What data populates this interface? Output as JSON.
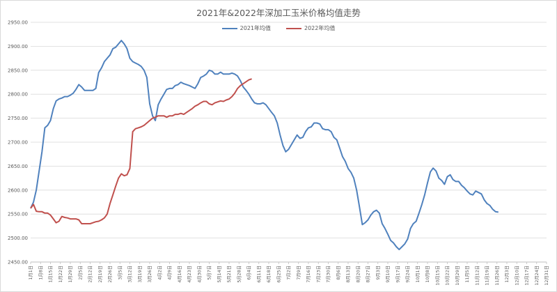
{
  "chart_data": {
    "type": "line",
    "title": "2021年&2022年深加工玉米价格均值走势",
    "xlabel": "",
    "ylabel": "",
    "ylim": [
      2450,
      2950
    ],
    "ytick_labels": [
      "2450.00",
      "2500.00",
      "2550.00",
      "2600.00",
      "2650.00",
      "2700.00",
      "2750.00",
      "2800.00",
      "2850.00",
      "2900.00",
      "2950.00"
    ],
    "x_tick_labels": [
      "1月1日",
      "1月8日",
      "1月15日",
      "1月22日",
      "1月29日",
      "2月5日",
      "2月12日",
      "2月19日",
      "2月26日",
      "3月5日",
      "3月12日",
      "3月19日",
      "3月26日",
      "4月2日",
      "4月9日",
      "4月16日",
      "4月23日",
      "4月30日",
      "5月7日",
      "5月14日",
      "5月21日",
      "5月28日",
      "6月4日",
      "6月11日",
      "6月18日",
      "6月25日",
      "7月2日",
      "7月9日",
      "7月16日",
      "7月23日",
      "7月30日",
      "8月6日",
      "8月13日",
      "8月20日",
      "8月27日",
      "9月3日",
      "9月10日",
      "9月17日",
      "9月24日",
      "10月1日",
      "10月8日",
      "10月15日",
      "10月22日",
      "10月29日",
      "11月5日",
      "11月12日",
      "11月19日",
      "11月26日",
      "12月3日",
      "12月10日",
      "12月17日",
      "12月24日",
      "12月31日"
    ],
    "grid": "horizontal",
    "legend_position": "top",
    "series": [
      {
        "name": "2021年均值",
        "color": "#4f81bd",
        "points": [
          [
            0,
            2562
          ],
          [
            2,
            2575
          ],
          [
            4,
            2600
          ],
          [
            6,
            2640
          ],
          [
            8,
            2680
          ],
          [
            10,
            2730
          ],
          [
            12,
            2735
          ],
          [
            14,
            2745
          ],
          [
            16,
            2770
          ],
          [
            18,
            2786
          ],
          [
            20,
            2790
          ],
          [
            22,
            2792
          ],
          [
            24,
            2795
          ],
          [
            26,
            2795
          ],
          [
            28,
            2798
          ],
          [
            30,
            2802
          ],
          [
            32,
            2810
          ],
          [
            34,
            2820
          ],
          [
            36,
            2815
          ],
          [
            38,
            2808
          ],
          [
            40,
            2808
          ],
          [
            42,
            2808
          ],
          [
            44,
            2808
          ],
          [
            46,
            2812
          ],
          [
            48,
            2845
          ],
          [
            50,
            2855
          ],
          [
            52,
            2868
          ],
          [
            54,
            2875
          ],
          [
            56,
            2882
          ],
          [
            58,
            2895
          ],
          [
            60,
            2898
          ],
          [
            62,
            2905
          ],
          [
            64,
            2912
          ],
          [
            66,
            2905
          ],
          [
            68,
            2895
          ],
          [
            70,
            2875
          ],
          [
            72,
            2868
          ],
          [
            74,
            2865
          ],
          [
            76,
            2862
          ],
          [
            78,
            2858
          ],
          [
            80,
            2850
          ],
          [
            82,
            2835
          ],
          [
            84,
            2780
          ],
          [
            86,
            2755
          ],
          [
            88,
            2745
          ],
          [
            90,
            2778
          ],
          [
            92,
            2790
          ],
          [
            94,
            2800
          ],
          [
            96,
            2810
          ],
          [
            98,
            2812
          ],
          [
            100,
            2812
          ],
          [
            102,
            2818
          ],
          [
            104,
            2820
          ],
          [
            106,
            2825
          ],
          [
            108,
            2822
          ],
          [
            110,
            2820
          ],
          [
            112,
            2818
          ],
          [
            114,
            2815
          ],
          [
            116,
            2812
          ],
          [
            118,
            2822
          ],
          [
            120,
            2835
          ],
          [
            122,
            2838
          ],
          [
            124,
            2842
          ],
          [
            126,
            2850
          ],
          [
            128,
            2848
          ],
          [
            130,
            2842
          ],
          [
            132,
            2842
          ],
          [
            134,
            2846
          ],
          [
            136,
            2842
          ],
          [
            138,
            2842
          ],
          [
            140,
            2842
          ],
          [
            142,
            2844
          ],
          [
            144,
            2842
          ],
          [
            146,
            2838
          ],
          [
            148,
            2828
          ],
          [
            150,
            2815
          ],
          [
            152,
            2808
          ],
          [
            154,
            2800
          ],
          [
            156,
            2790
          ],
          [
            158,
            2782
          ],
          [
            160,
            2780
          ],
          [
            162,
            2780
          ],
          [
            164,
            2782
          ],
          [
            166,
            2778
          ],
          [
            168,
            2770
          ],
          [
            170,
            2762
          ],
          [
            172,
            2755
          ],
          [
            174,
            2740
          ],
          [
            176,
            2715
          ],
          [
            178,
            2693
          ],
          [
            180,
            2680
          ],
          [
            182,
            2685
          ],
          [
            184,
            2695
          ],
          [
            186,
            2705
          ],
          [
            188,
            2715
          ],
          [
            190,
            2708
          ],
          [
            192,
            2710
          ],
          [
            194,
            2722
          ],
          [
            196,
            2730
          ],
          [
            198,
            2732
          ],
          [
            200,
            2740
          ],
          [
            202,
            2740
          ],
          [
            204,
            2738
          ],
          [
            206,
            2728
          ],
          [
            208,
            2726
          ],
          [
            210,
            2726
          ],
          [
            212,
            2722
          ],
          [
            214,
            2710
          ],
          [
            216,
            2705
          ],
          [
            218,
            2688
          ],
          [
            220,
            2670
          ],
          [
            222,
            2660
          ],
          [
            224,
            2645
          ],
          [
            226,
            2637
          ],
          [
            228,
            2625
          ],
          [
            230,
            2600
          ],
          [
            232,
            2565
          ],
          [
            234,
            2528
          ],
          [
            236,
            2532
          ],
          [
            238,
            2538
          ],
          [
            240,
            2548
          ],
          [
            242,
            2555
          ],
          [
            244,
            2558
          ],
          [
            246,
            2552
          ],
          [
            248,
            2530
          ],
          [
            250,
            2520
          ],
          [
            252,
            2508
          ],
          [
            254,
            2495
          ],
          [
            256,
            2490
          ],
          [
            258,
            2482
          ],
          [
            260,
            2476
          ],
          [
            262,
            2482
          ],
          [
            264,
            2488
          ],
          [
            266,
            2498
          ],
          [
            268,
            2520
          ],
          [
            270,
            2530
          ],
          [
            272,
            2535
          ],
          [
            274,
            2552
          ],
          [
            276,
            2570
          ],
          [
            278,
            2590
          ],
          [
            280,
            2615
          ],
          [
            282,
            2638
          ],
          [
            284,
            2646
          ],
          [
            286,
            2640
          ],
          [
            288,
            2625
          ],
          [
            290,
            2620
          ],
          [
            292,
            2612
          ],
          [
            294,
            2628
          ],
          [
            296,
            2632
          ],
          [
            298,
            2622
          ],
          [
            300,
            2618
          ],
          [
            302,
            2618
          ],
          [
            304,
            2610
          ],
          [
            306,
            2605
          ],
          [
            308,
            2598
          ],
          [
            310,
            2592
          ],
          [
            312,
            2590
          ],
          [
            314,
            2598
          ],
          [
            316,
            2595
          ],
          [
            318,
            2592
          ],
          [
            320,
            2580
          ],
          [
            322,
            2572
          ],
          [
            324,
            2568
          ],
          [
            326,
            2560
          ],
          [
            328,
            2555
          ],
          [
            330,
            2554
          ]
        ]
      },
      {
        "name": "2022年均值",
        "color": "#c0504d",
        "points": [
          [
            0,
            2562
          ],
          [
            2,
            2570
          ],
          [
            4,
            2556
          ],
          [
            6,
            2555
          ],
          [
            8,
            2555
          ],
          [
            10,
            2552
          ],
          [
            12,
            2552
          ],
          [
            14,
            2548
          ],
          [
            16,
            2540
          ],
          [
            18,
            2532
          ],
          [
            20,
            2535
          ],
          [
            22,
            2545
          ],
          [
            24,
            2543
          ],
          [
            26,
            2542
          ],
          [
            28,
            2540
          ],
          [
            30,
            2540
          ],
          [
            32,
            2540
          ],
          [
            34,
            2538
          ],
          [
            36,
            2530
          ],
          [
            38,
            2530
          ],
          [
            40,
            2530
          ],
          [
            42,
            2530
          ],
          [
            44,
            2532
          ],
          [
            46,
            2534
          ],
          [
            48,
            2535
          ],
          [
            50,
            2538
          ],
          [
            52,
            2542
          ],
          [
            54,
            2550
          ],
          [
            56,
            2572
          ],
          [
            58,
            2590
          ],
          [
            60,
            2608
          ],
          [
            62,
            2625
          ],
          [
            64,
            2634
          ],
          [
            66,
            2630
          ],
          [
            68,
            2632
          ],
          [
            70,
            2645
          ],
          [
            72,
            2722
          ],
          [
            74,
            2728
          ],
          [
            76,
            2730
          ],
          [
            78,
            2732
          ],
          [
            80,
            2735
          ],
          [
            82,
            2740
          ],
          [
            84,
            2745
          ],
          [
            86,
            2750
          ],
          [
            88,
            2752
          ],
          [
            90,
            2755
          ],
          [
            92,
            2755
          ],
          [
            94,
            2755
          ],
          [
            96,
            2752
          ],
          [
            98,
            2755
          ],
          [
            100,
            2755
          ],
          [
            102,
            2758
          ],
          [
            104,
            2758
          ],
          [
            106,
            2760
          ],
          [
            108,
            2758
          ],
          [
            110,
            2762
          ],
          [
            112,
            2766
          ],
          [
            114,
            2770
          ],
          [
            116,
            2775
          ],
          [
            118,
            2778
          ],
          [
            120,
            2782
          ],
          [
            122,
            2785
          ],
          [
            124,
            2785
          ],
          [
            126,
            2780
          ],
          [
            128,
            2778
          ],
          [
            130,
            2782
          ],
          [
            132,
            2784
          ],
          [
            134,
            2786
          ],
          [
            136,
            2785
          ],
          [
            138,
            2788
          ],
          [
            140,
            2790
          ],
          [
            142,
            2795
          ],
          [
            144,
            2802
          ],
          [
            146,
            2812
          ],
          [
            148,
            2818
          ],
          [
            150,
            2822
          ],
          [
            152,
            2826
          ],
          [
            154,
            2830
          ],
          [
            156,
            2832
          ]
        ]
      }
    ]
  }
}
